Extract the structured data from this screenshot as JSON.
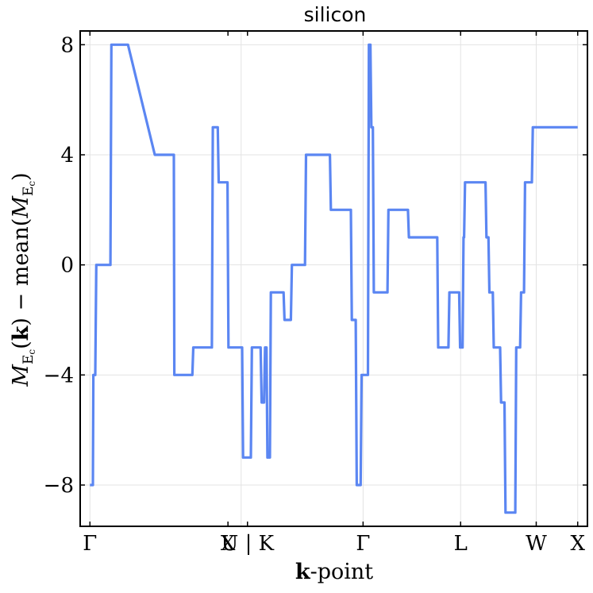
{
  "chart_data": {
    "type": "line",
    "title": "silicon",
    "xlabel_bold": "k",
    "xlabel_rest": "-point",
    "ylabel": "M_Ec(k) − mean(M_Ec)",
    "ylabel_parts": {
      "M": "M",
      "sub": "E",
      "subsub": "c",
      "k": "k",
      "mid": " − mean(",
      "close": ")"
    },
    "ylim": [
      -9.5,
      8.5
    ],
    "xlim": [
      -0.02,
      1.02
    ],
    "grid": true,
    "y_ticks": [
      -8,
      -4,
      0,
      4,
      8
    ],
    "y_tick_labels": [
      "−8",
      "−4",
      "0",
      "4",
      "8"
    ],
    "x_ticks": [
      {
        "x": 0.0,
        "label": "Γ"
      },
      {
        "x": 0.283,
        "label": "X"
      },
      {
        "x": 0.323,
        "label": "U | K"
      },
      {
        "x": 0.56,
        "label": "Γ"
      },
      {
        "x": 0.76,
        "label": "L"
      },
      {
        "x": 0.915,
        "label": "W"
      },
      {
        "x": 1.0,
        "label": "X"
      }
    ],
    "x_grid": [
      0.0,
      0.31,
      0.56,
      0.76,
      0.915,
      1.0
    ],
    "series": [
      {
        "name": "silicon",
        "color": "#5b86f2",
        "x": [
          0.0,
          0.006,
          0.007,
          0.011,
          0.013,
          0.042,
          0.044,
          0.07,
          0.078,
          0.078,
          0.133,
          0.135,
          0.17,
          0.171,
          0.172,
          0.173,
          0.19,
          0.192,
          0.21,
          0.212,
          0.25,
          0.252,
          0.255,
          0.257,
          0.262,
          0.264,
          0.282,
          0.284,
          0.312,
          0.314,
          0.33,
          0.332,
          0.35,
          0.352,
          0.357,
          0.359,
          0.362,
          0.364,
          0.369,
          0.371,
          0.397,
          0.399,
          0.412,
          0.414,
          0.441,
          0.443,
          0.492,
          0.494,
          0.535,
          0.537,
          0.545,
          0.547,
          0.555,
          0.557,
          0.57,
          0.572,
          0.575,
          0.577,
          0.58,
          0.582,
          0.61,
          0.612,
          0.652,
          0.654,
          0.712,
          0.714,
          0.735,
          0.737,
          0.757,
          0.759,
          0.764,
          0.766,
          0.767,
          0.769,
          0.811,
          0.813,
          0.817,
          0.819,
          0.826,
          0.828,
          0.841,
          0.843,
          0.85,
          0.852,
          0.872,
          0.874,
          0.882,
          0.884,
          0.89,
          0.892,
          0.906,
          0.908,
          0.947,
          0.949,
          0.954,
          0.956,
          0.957,
          0.959,
          0.965,
          0.967,
          0.981,
          0.983,
          0.989,
          0.991,
          1.0
        ],
        "y": [
          -8,
          -8,
          -4,
          -4,
          0,
          0,
          8,
          8,
          8,
          8,
          4,
          4,
          4,
          4,
          4,
          -4,
          -4,
          -4,
          -4,
          -3,
          -3,
          5,
          5,
          5,
          5,
          3,
          3,
          -3,
          -3,
          -7,
          -7,
          -3,
          -3,
          -5,
          -5,
          -3,
          -3,
          -7,
          -7,
          -1,
          -1,
          -2,
          -2,
          0,
          0,
          4,
          4,
          2,
          2,
          -2,
          -2,
          -8,
          -8,
          -4,
          -4,
          8,
          8,
          5,
          5,
          -1,
          -1,
          2,
          2,
          1,
          1,
          -3,
          -3,
          -1,
          -1,
          -3,
          -3,
          1,
          1,
          3,
          3,
          1,
          1,
          -1,
          -1,
          -3,
          -3,
          -5,
          -5,
          -9,
          -9,
          -3,
          -3,
          -1,
          -1,
          3,
          3,
          5,
          5,
          5,
          5,
          5,
          5,
          5,
          5,
          5,
          5,
          5,
          5,
          5,
          5
        ]
      }
    ]
  }
}
